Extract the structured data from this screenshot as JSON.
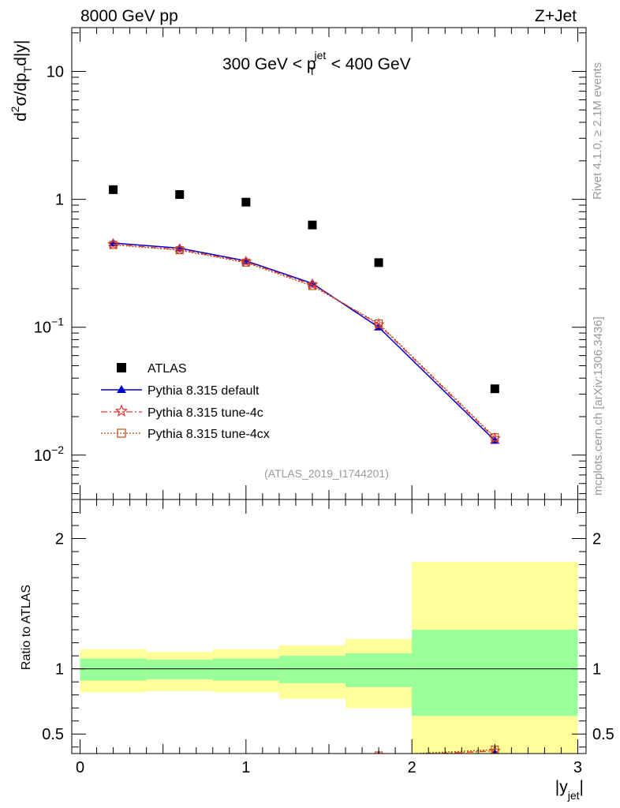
{
  "header": {
    "left_label": "8000 GeV pp",
    "right_label": "Z+Jet"
  },
  "side_labels": {
    "rivet": "Rivet 4.1.0, ≥ 2.1M events",
    "mcplots": "mcplots.cern.ch [arXiv:1306.3436]"
  },
  "colors": {
    "atlas": "#000000",
    "default": "#0000cc",
    "tune4c": "#ee3333",
    "tune4cx": "#b34a18",
    "band_inner": "#99ff99",
    "band_outer": "#ffff99"
  },
  "chart_data": [
    {
      "type": "scatter",
      "panel": "main",
      "title": "300 GeV < p_T^jet < 400 GeV",
      "title_parts": {
        "pre": "300 GeV < p",
        "sup": "jet",
        "sub": "T",
        "post": " < 400 GeV"
      },
      "ylabel": "d²σ/dp_T d|y|",
      "ylabel_parts": {
        "d": "d",
        "two": "2",
        "mid": "σ/dp",
        "T": "T",
        "tail": "d|y|"
      },
      "xlabel": "|y_jet|",
      "yscale": "log",
      "xlim": [
        -0.05,
        3.05
      ],
      "ylim": [
        0.0045,
        22
      ],
      "yticks": [
        {
          "value": 10,
          "label": "10",
          "exp": ""
        },
        {
          "value": 1,
          "label": "1",
          "exp": ""
        },
        {
          "value": 0.1,
          "label": "10",
          "exp": "−1"
        },
        {
          "value": 0.01,
          "label": "10",
          "exp": "−2"
        }
      ],
      "watermark": "(ATLAS_2019_I1744201)",
      "series": [
        {
          "name": "ATLAS",
          "marker": "square",
          "x": [
            0.2,
            0.6,
            1.0,
            1.4,
            1.8,
            2.5
          ],
          "y": [
            1.19,
            1.09,
            0.95,
            0.63,
            0.32,
            0.033
          ]
        },
        {
          "name": "Pythia 8.315 default",
          "marker": "triangle",
          "line": "solid",
          "x": [
            0.2,
            0.6,
            1.0,
            1.4,
            1.8,
            2.5
          ],
          "y": [
            0.455,
            0.415,
            0.33,
            0.22,
            0.1,
            0.013
          ]
        },
        {
          "name": "Pythia 8.315 tune-4c",
          "marker": "star",
          "line": "dashdot",
          "x": [
            0.2,
            0.6,
            1.0,
            1.4,
            1.8,
            2.5
          ],
          "y": [
            0.445,
            0.405,
            0.325,
            0.215,
            0.105,
            0.0135
          ]
        },
        {
          "name": "Pythia 8.315 tune-4cx",
          "marker": "open-square",
          "line": "dotted",
          "x": [
            0.2,
            0.6,
            1.0,
            1.4,
            1.8,
            2.5
          ],
          "y": [
            0.44,
            0.4,
            0.32,
            0.21,
            0.107,
            0.0138
          ]
        }
      ]
    },
    {
      "type": "area",
      "panel": "ratio",
      "ylabel": "Ratio to ATLAS",
      "xlabel": "|y_jet|",
      "xlabel_parts": {
        "main": "|y",
        "sub": "jet",
        "tail": "|"
      },
      "xlim": [
        -0.05,
        3.05
      ],
      "ylim": [
        0.35,
        2.3
      ],
      "xticks": [
        0,
        1,
        2,
        3
      ],
      "xtick_labels": [
        "0",
        "1",
        "2",
        "3"
      ],
      "yticks": [
        0.5,
        1,
        2
      ],
      "ytick_labels": [
        "0.5",
        "1",
        "2"
      ],
      "bins": [
        {
          "x_low": 0.0,
          "x_high": 0.4,
          "inner": [
            0.91,
            1.08
          ],
          "outer": [
            0.82,
            1.15
          ]
        },
        {
          "x_low": 0.4,
          "x_high": 0.8,
          "inner": [
            0.92,
            1.07
          ],
          "outer": [
            0.83,
            1.13
          ]
        },
        {
          "x_low": 0.8,
          "x_high": 1.2,
          "inner": [
            0.91,
            1.08
          ],
          "outer": [
            0.82,
            1.15
          ]
        },
        {
          "x_low": 1.2,
          "x_high": 1.6,
          "inner": [
            0.89,
            1.1
          ],
          "outer": [
            0.77,
            1.18
          ]
        },
        {
          "x_low": 1.6,
          "x_high": 2.0,
          "inner": [
            0.86,
            1.12
          ],
          "outer": [
            0.7,
            1.23
          ]
        },
        {
          "x_low": 2.0,
          "x_high": 3.0,
          "inner": [
            0.64,
            1.3
          ],
          "outer": [
            0.3,
            1.82
          ]
        }
      ],
      "series": [
        {
          "name": "Pythia 8.315 default",
          "x": [
            1.8,
            2.5
          ],
          "y": [
            0.31,
            0.35
          ]
        },
        {
          "name": "Pythia 8.315 tune-4c",
          "x": [
            1.8,
            2.5
          ],
          "y": [
            0.33,
            0.37
          ]
        },
        {
          "name": "Pythia 8.315 tune-4cx",
          "x": [
            1.8,
            2.5
          ],
          "y": [
            0.335,
            0.38
          ]
        }
      ]
    }
  ]
}
